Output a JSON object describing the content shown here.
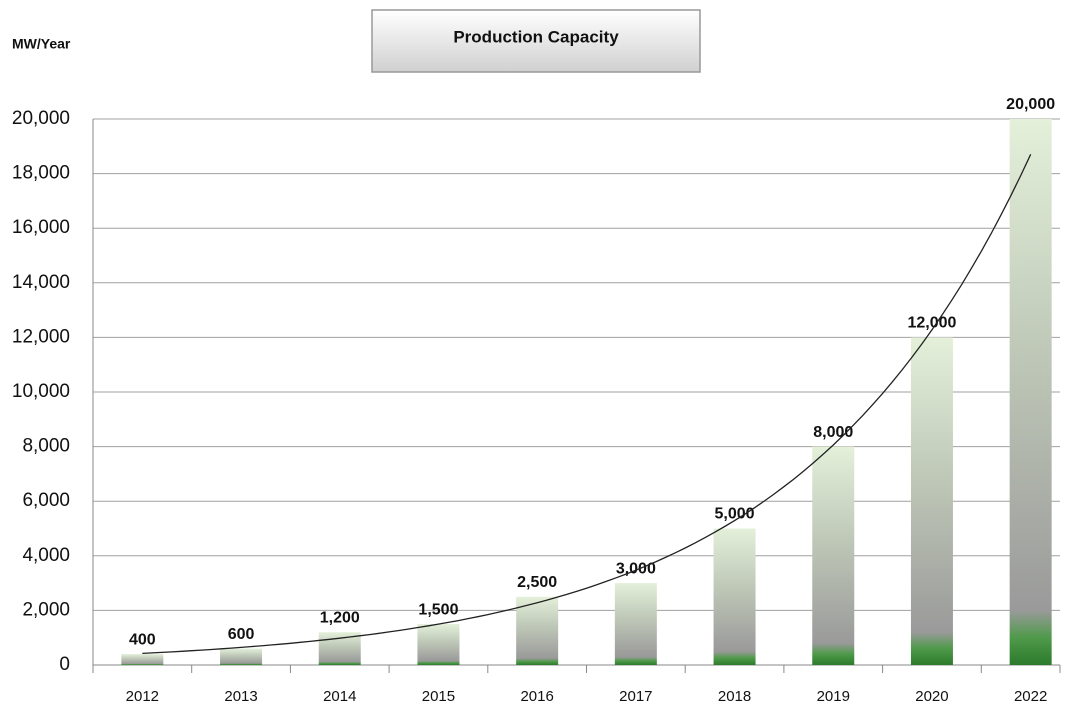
{
  "chart_data": {
    "type": "bar",
    "title": "Production Capacity",
    "y_label": "MW/Year",
    "categories": [
      "2012",
      "2013",
      "2014",
      "2015",
      "2016",
      "2017",
      "2018",
      "2019",
      "2020",
      "2022"
    ],
    "values": [
      400,
      600,
      1200,
      1500,
      2500,
      3000,
      5000,
      8000,
      12000,
      20000
    ],
    "value_labels": [
      "400",
      "600",
      "1,200",
      "1,500",
      "2,500",
      "3,000",
      "5,000",
      "8,000",
      "12,000",
      "20,000"
    ],
    "ylim": [
      0,
      20000
    ],
    "yticks": [
      0,
      {
        "value": 2000,
        "label": "2,000"
      },
      {
        "value": 4000,
        "label": "4,000"
      },
      {
        "value": 6000,
        "label": "6,000"
      },
      {
        "value": 8000,
        "label": "8,000"
      },
      {
        "value": 10000,
        "label": "10,000"
      },
      {
        "value": 12000,
        "label": "12,000"
      },
      {
        "value": 14000,
        "label": "14,000"
      },
      {
        "value": 16000,
        "label": "16,000"
      },
      {
        "value": 18000,
        "label": "18,000"
      },
      {
        "value": 20000,
        "label": "20,000"
      }
    ],
    "grid": true,
    "trendline": "exponential"
  }
}
